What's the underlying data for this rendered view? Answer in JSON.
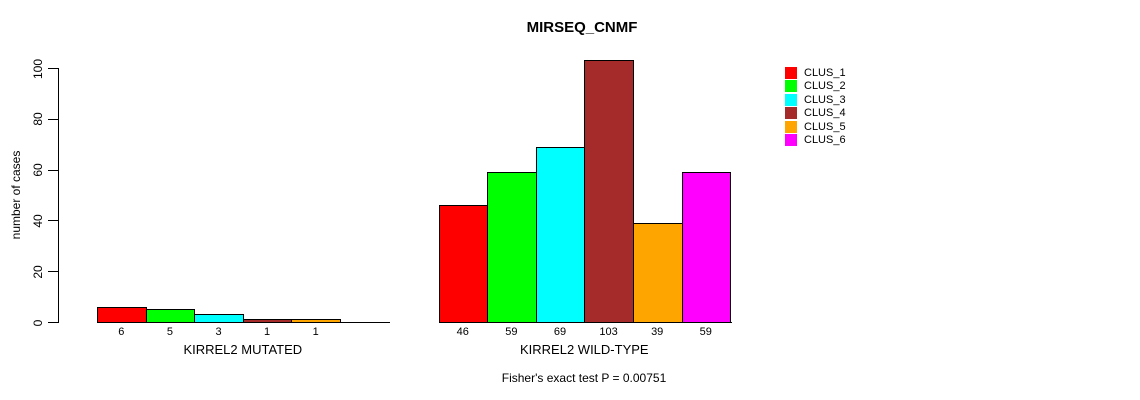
{
  "chart_data": {
    "type": "bar",
    "title": "MIRSEQ_CNMF",
    "ylabel": "number of cases",
    "ylim": [
      0,
      100
    ],
    "yticks": [
      0,
      20,
      40,
      60,
      80,
      100
    ],
    "grid": false,
    "legend_position": "top-right",
    "legend_entries": [
      {
        "label": "CLUS_1",
        "color": "#FF0000"
      },
      {
        "label": "CLUS_2",
        "color": "#00FF00"
      },
      {
        "label": "CLUS_3",
        "color": "#00FFFF"
      },
      {
        "label": "CLUS_4",
        "color": "#A52A2A"
      },
      {
        "label": "CLUS_5",
        "color": "#FFA500"
      },
      {
        "label": "CLUS_6",
        "color": "#FF00FF"
      }
    ],
    "groups": [
      {
        "label": "KIRREL2 MUTATED",
        "values": [
          6,
          5,
          3,
          1,
          1,
          0
        ]
      },
      {
        "label": "KIRREL2 WILD-TYPE",
        "values": [
          46,
          59,
          69,
          103,
          39,
          59
        ]
      }
    ],
    "annotation": "Fisher's exact test P = 0.00751"
  }
}
